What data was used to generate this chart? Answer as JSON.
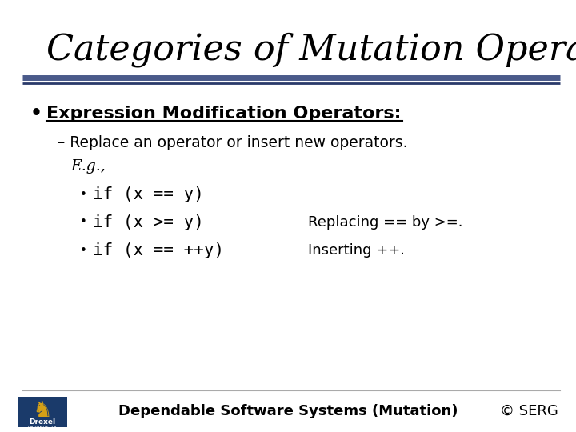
{
  "title": "Categories of Mutation Operators",
  "slide_bg": "#ffffff",
  "title_color": "#000000",
  "title_fontsize": 32,
  "separator_color_top": "#4a5a8a",
  "separator_color_bottom": "#2a3a6a",
  "bullet_color": "#000000",
  "bullet1_text": "Expression Modification Operators:",
  "sub1_text": "– Replace an operator or insert new operators.",
  "sub2_text": "E.g.,",
  "item1_text": "if (x == y)",
  "item2_text": "if (x >= y)",
  "item2_note": "Replacing == by >=.",
  "item3_text": "if (x == ++y)",
  "item3_note": "Inserting ++.",
  "footer_text": "Dependable Software Systems (Mutation)",
  "footer_right": "© SERG",
  "footer_color": "#000000",
  "drexel_bg": "#1a3a6a",
  "drexel_gold": "#d4a017",
  "content_color": "#000000",
  "mono_color": "#000000"
}
